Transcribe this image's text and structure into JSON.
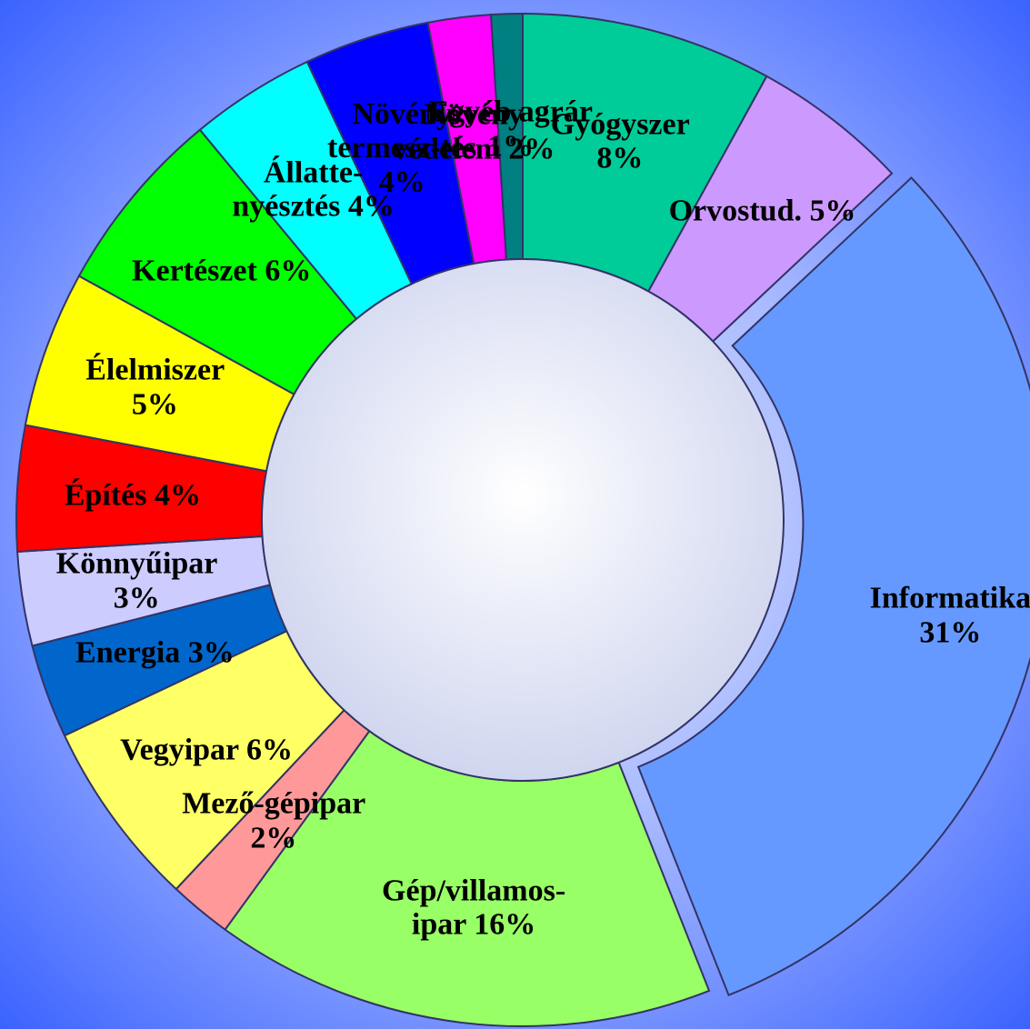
{
  "chart_data": {
    "type": "donut",
    "categories": [
      "Gyógyszer",
      "Orvostud.",
      "Informatika",
      "Gép/villamos-ipar",
      "Mező-gépipar",
      "Vegyipar",
      "Energia",
      "Könnyűipar",
      "Építés",
      "Élelmiszer",
      "Kertészet",
      "Állatte-nyésztés",
      "Növény termesz-tés",
      "Növény védelem",
      "Egyéb agrár"
    ],
    "values": [
      8,
      5,
      31,
      16,
      2,
      6,
      3,
      3,
      4,
      5,
      6,
      4,
      4,
      2,
      1
    ],
    "value_labels": [
      "8%",
      "5%",
      "31%",
      "16%",
      "2%",
      "6%",
      "3%",
      "3%",
      "4%",
      "5%",
      "6%",
      "4%",
      "4%",
      "2%",
      "1%"
    ],
    "colors": [
      "#00cc99",
      "#cc99ff",
      "#6699ff",
      "#99ff66",
      "#ff9999",
      "#ffff66",
      "#0066cc",
      "#ccccff",
      "#ff0000",
      "#ffff00",
      "#00ff00",
      "#00ffff",
      "#0000ff",
      "#ff00ff",
      "#008080"
    ],
    "exploded": [
      2
    ]
  }
}
